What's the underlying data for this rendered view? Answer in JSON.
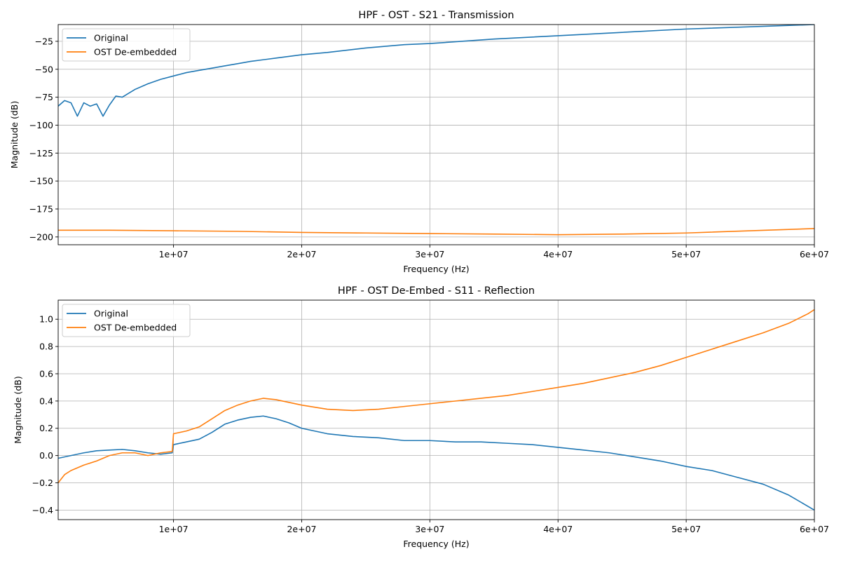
{
  "chart_data": [
    {
      "type": "line",
      "title": "HPF - OST - S21 - Transmission",
      "xlabel": "Frequency (Hz)",
      "ylabel": "Magnitude (dB)",
      "xlim": [
        1000000,
        60000000
      ],
      "ylim": [
        -207,
        -10
      ],
      "xticks": [
        10000000,
        20000000,
        30000000,
        40000000,
        50000000,
        60000000
      ],
      "xtick_labels": [
        "1e+07",
        "2e+07",
        "3e+07",
        "4e+07",
        "5e+07",
        "6e+07"
      ],
      "yticks": [
        -25,
        -50,
        -75,
        -100,
        -125,
        -150,
        -175,
        -200
      ],
      "ytick_labels": [
        "−25",
        "−50",
        "−75",
        "−100",
        "−125",
        "−150",
        "−175",
        "−200"
      ],
      "grid": true,
      "legend": "upper-left",
      "series": [
        {
          "name": "Original",
          "color": "#1f77b4",
          "x": [
            1000000,
            1500000,
            2000000,
            2500000,
            3000000,
            3500000,
            4000000,
            4500000,
            5000000,
            5500000,
            6000000,
            7000000,
            8000000,
            9000000,
            10000000,
            11000000,
            12000000,
            13000000,
            14000000,
            15000000,
            16000000,
            18000000,
            20000000,
            22000000,
            25000000,
            28000000,
            30000000,
            35000000,
            40000000,
            45000000,
            50000000,
            55000000,
            60000000
          ],
          "y": [
            -83,
            -78,
            -80,
            -92,
            -80,
            -83,
            -81,
            -92,
            -82,
            -74,
            -75,
            -68,
            -63,
            -59,
            -56,
            -53,
            -51,
            -49,
            -47,
            -45,
            -43,
            -40,
            -37,
            -35,
            -31,
            -28,
            -27,
            -23,
            -20,
            -17,
            -14,
            -12,
            -10
          ]
        },
        {
          "name": "OST De-embedded",
          "color": "#ff7f0e",
          "x": [
            1000000,
            5000000,
            10000000,
            15000000,
            20000000,
            25000000,
            30000000,
            35000000,
            40000000,
            45000000,
            50000000,
            55000000,
            60000000
          ],
          "y": [
            -194,
            -194,
            -194.5,
            -195,
            -196,
            -196.5,
            -197,
            -197.5,
            -198,
            -197.5,
            -196.5,
            -194.5,
            -192.5
          ]
        }
      ]
    },
    {
      "type": "line",
      "title": "HPF - OST De-Embed - S11 - Reflection",
      "xlabel": "Frequency (Hz)",
      "ylabel": "Magnitude (dB)",
      "xlim": [
        1000000,
        60000000
      ],
      "ylim": [
        -0.47,
        1.14
      ],
      "xticks": [
        10000000,
        20000000,
        30000000,
        40000000,
        50000000,
        60000000
      ],
      "xtick_labels": [
        "1e+07",
        "2e+07",
        "3e+07",
        "4e+07",
        "5e+07",
        "6e+07"
      ],
      "yticks": [
        1.0,
        0.8,
        0.6,
        0.4,
        0.2,
        0.0,
        -0.2,
        -0.4
      ],
      "ytick_labels": [
        "1.0",
        "0.8",
        "0.6",
        "0.4",
        "0.2",
        "0.0",
        "−0.2",
        "−0.4"
      ],
      "grid": true,
      "legend": "upper-left",
      "series": [
        {
          "name": "Original",
          "color": "#1f77b4",
          "x": [
            1000000,
            2000000,
            3000000,
            4000000,
            5000000,
            6000000,
            7000000,
            8000000,
            9000000,
            9900000,
            10000000,
            11000000,
            12000000,
            13000000,
            14000000,
            15000000,
            16000000,
            17000000,
            18000000,
            19000000,
            20000000,
            22000000,
            24000000,
            26000000,
            28000000,
            30000000,
            32000000,
            34000000,
            36000000,
            38000000,
            40000000,
            42000000,
            44000000,
            46000000,
            48000000,
            50000000,
            52000000,
            54000000,
            56000000,
            58000000,
            60000000
          ],
          "y": [
            -0.02,
            0.0,
            0.02,
            0.035,
            0.04,
            0.045,
            0.035,
            0.02,
            0.01,
            0.02,
            0.08,
            0.1,
            0.12,
            0.17,
            0.23,
            0.26,
            0.28,
            0.29,
            0.27,
            0.24,
            0.2,
            0.16,
            0.14,
            0.13,
            0.11,
            0.11,
            0.1,
            0.1,
            0.09,
            0.08,
            0.06,
            0.04,
            0.02,
            -0.01,
            -0.04,
            -0.08,
            -0.11,
            -0.16,
            -0.21,
            -0.29,
            -0.4
          ]
        },
        {
          "name": "OST De-embedded",
          "color": "#ff7f0e",
          "x": [
            1000000,
            1500000,
            2000000,
            3000000,
            4000000,
            5000000,
            6000000,
            7000000,
            8000000,
            9000000,
            9900000,
            10000000,
            11000000,
            12000000,
            13000000,
            14000000,
            15000000,
            16000000,
            17000000,
            18000000,
            19000000,
            20000000,
            22000000,
            24000000,
            26000000,
            28000000,
            30000000,
            32000000,
            34000000,
            36000000,
            38000000,
            40000000,
            42000000,
            44000000,
            46000000,
            48000000,
            50000000,
            52000000,
            54000000,
            56000000,
            58000000,
            59500000,
            60000000
          ],
          "y": [
            -0.2,
            -0.14,
            -0.11,
            -0.07,
            -0.04,
            0.0,
            0.02,
            0.02,
            0.0,
            0.02,
            0.03,
            0.16,
            0.18,
            0.21,
            0.27,
            0.33,
            0.37,
            0.4,
            0.42,
            0.41,
            0.39,
            0.37,
            0.34,
            0.33,
            0.34,
            0.36,
            0.38,
            0.4,
            0.42,
            0.44,
            0.47,
            0.5,
            0.53,
            0.57,
            0.61,
            0.66,
            0.72,
            0.78,
            0.84,
            0.9,
            0.97,
            1.04,
            1.07
          ]
        }
      ]
    }
  ]
}
